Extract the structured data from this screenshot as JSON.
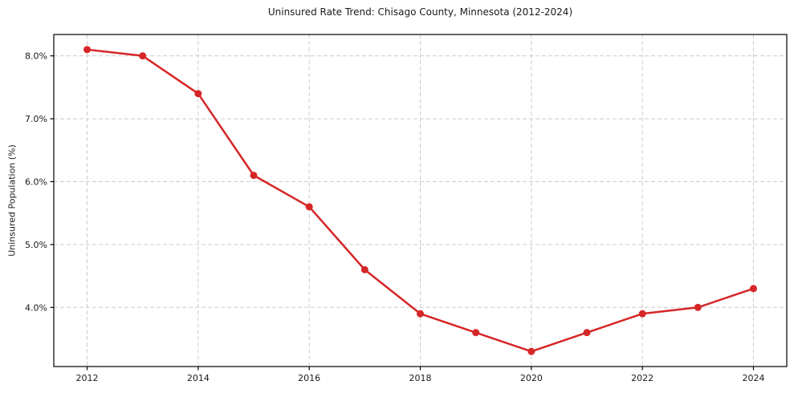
{
  "chart_data": {
    "type": "line",
    "title": "Uninsured Rate Trend: Chisago County, Minnesota (2012-2024)",
    "xlabel": "",
    "ylabel": "Uninsured Population (%)",
    "x": [
      2012,
      2013,
      2014,
      2015,
      2016,
      2017,
      2018,
      2019,
      2020,
      2021,
      2022,
      2023,
      2024
    ],
    "values": [
      8.1,
      8.0,
      7.4,
      6.1,
      5.6,
      4.6,
      3.9,
      3.6,
      3.3,
      3.6,
      3.9,
      4.0,
      4.3
    ],
    "xlim": [
      2011.4,
      2024.6
    ],
    "ylim": [
      3.06,
      8.34
    ],
    "xticks": [
      2012,
      2014,
      2016,
      2018,
      2020,
      2022,
      2024
    ],
    "xtick_labels": [
      "2012",
      "2014",
      "2016",
      "2018",
      "2020",
      "2022",
      "2024"
    ],
    "yticks": [
      4.0,
      5.0,
      6.0,
      7.0,
      8.0
    ],
    "ytick_labels": [
      "4.0%",
      "5.0%",
      "6.0%",
      "7.0%",
      "8.0%"
    ],
    "grid": true,
    "grid_style": "dashed",
    "legend": false,
    "line_color": "#d62728",
    "marker_color": "#d62728",
    "grid_color": "#cccccc",
    "axis_color": "#000000",
    "background_color": "#ffffff"
  }
}
